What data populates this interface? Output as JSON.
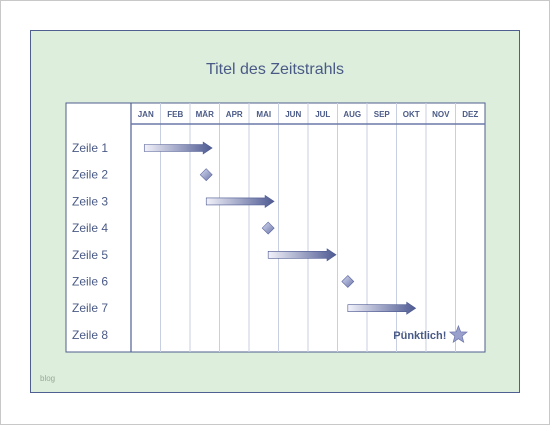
{
  "title": "Titel des Zeitstrahls",
  "footnote": "blog",
  "months": [
    "JAN",
    "FEB",
    "MÄR",
    "APR",
    "MAI",
    "JUN",
    "JUL",
    "AUG",
    "SEP",
    "OKT",
    "NOV",
    "DEZ"
  ],
  "rows": [
    {
      "label": "Zeile 1",
      "kind": "bar",
      "start_month": 1.45,
      "end_month": 3.75
    },
    {
      "label": "Zeile 2",
      "kind": "diamond",
      "month": 3.55
    },
    {
      "label": "Zeile 3",
      "kind": "bar",
      "start_month": 3.55,
      "end_month": 5.85
    },
    {
      "label": "Zeile 4",
      "kind": "diamond",
      "month": 5.65
    },
    {
      "label": "Zeile 5",
      "kind": "bar",
      "start_month": 5.65,
      "end_month": 7.95
    },
    {
      "label": "Zeile 6",
      "kind": "diamond",
      "month": 8.35
    },
    {
      "label": "Zeile 7",
      "kind": "bar",
      "start_month": 8.35,
      "end_month": 10.65
    },
    {
      "label": "Zeile 8",
      "kind": "star",
      "month": 12.1,
      "text": "Pünktlich!"
    }
  ],
  "colors": {
    "frame": "#4f5f8f",
    "header_line": "#6b78a8",
    "grid_line": "#c9cfe2",
    "bar_dark": "#4e5a92",
    "bar_light": "#f2f2fa",
    "diamond": "#8a93c2",
    "star": "#9aa0cc"
  }
}
